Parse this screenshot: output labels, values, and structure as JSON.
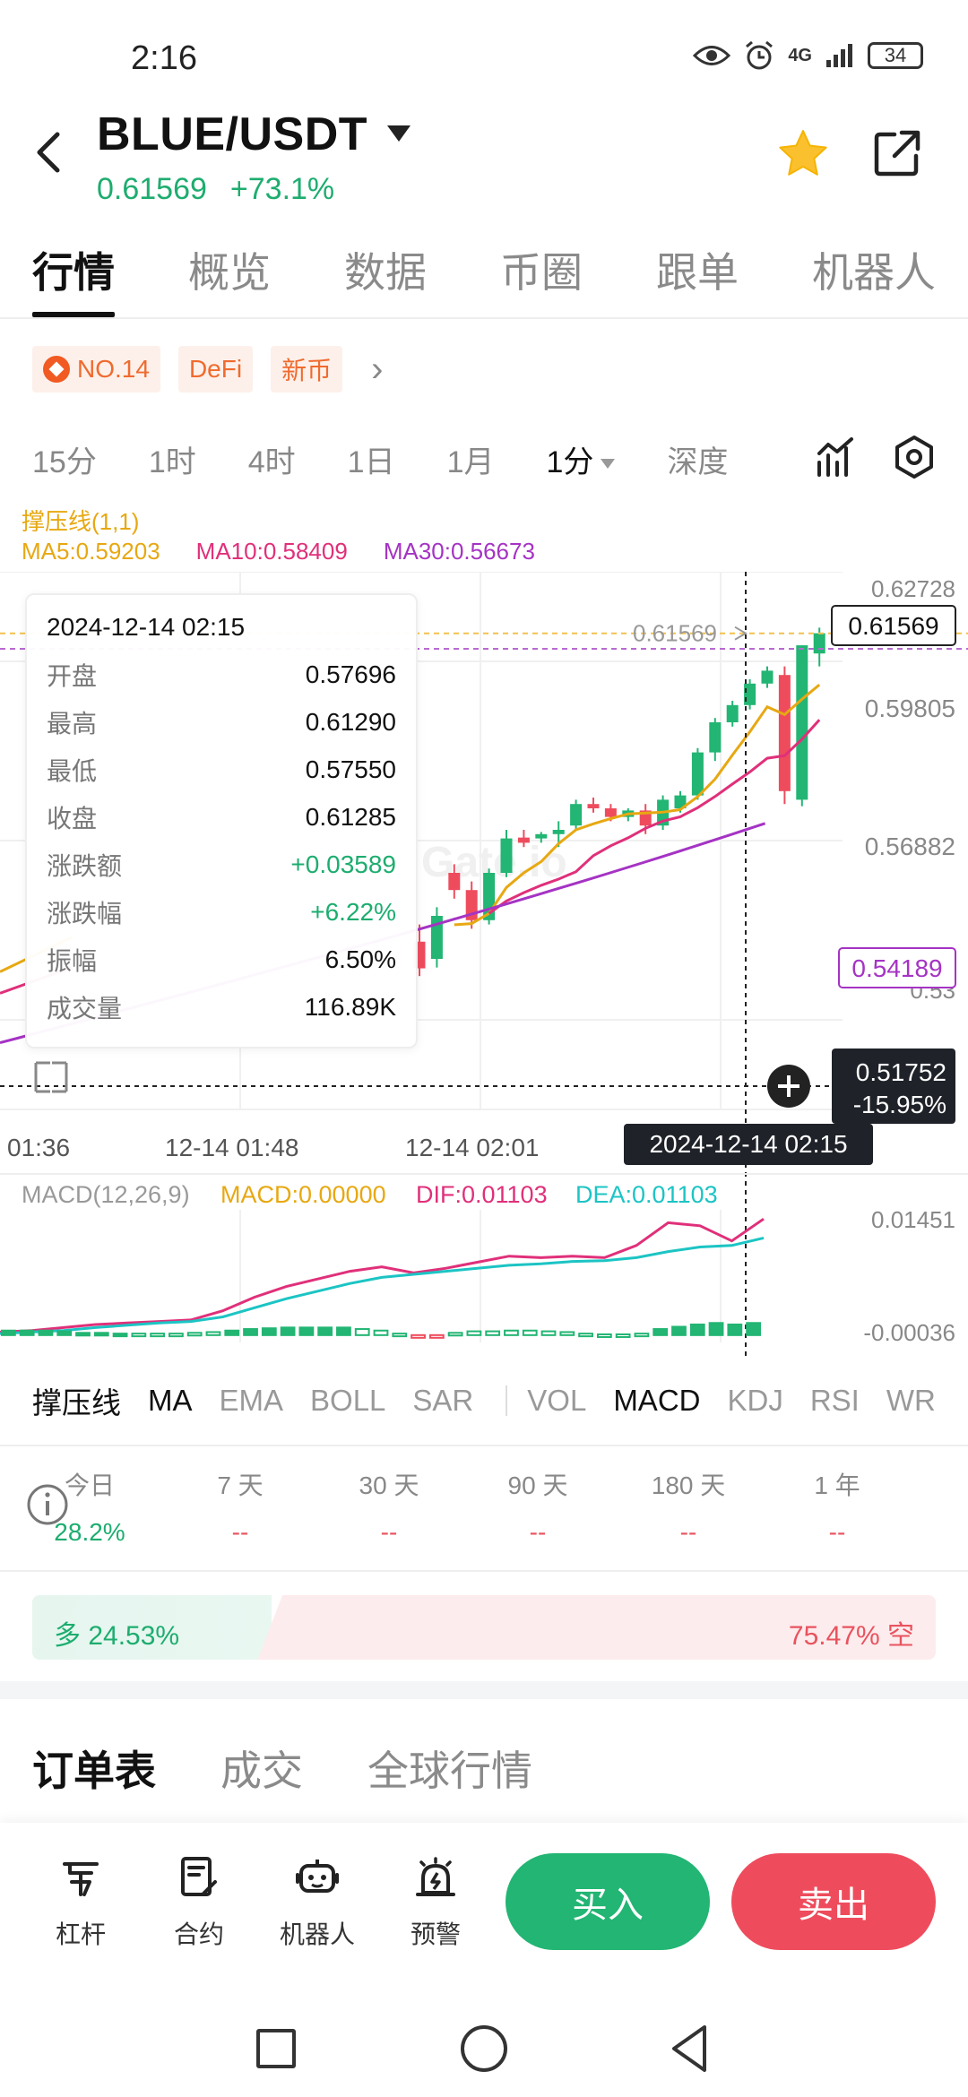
{
  "status_bar": {
    "time": "2:16",
    "network": "4G",
    "battery": "34"
  },
  "header": {
    "pair": "BLUE/USDT",
    "price": "0.61569",
    "change": "+73.1%"
  },
  "tabs": [
    {
      "label": "行情",
      "active": true
    },
    {
      "label": "概览",
      "active": false
    },
    {
      "label": "数据",
      "active": false
    },
    {
      "label": "币圈",
      "active": false
    },
    {
      "label": "跟单",
      "active": false
    },
    {
      "label": "机器人",
      "active": false
    }
  ],
  "tags": {
    "rank": "NO.14",
    "defi": "DeFi",
    "new": "新币"
  },
  "intervals": {
    "m15": "15分",
    "h1": "1时",
    "h4": "4时",
    "d1": "1日",
    "mo1": "1月",
    "selected": "1分",
    "depth": "深度"
  },
  "chart_legend": {
    "indicator": "撑压线(1,1)",
    "ma5": "MA5:0.59203",
    "ma10": "MA10:0.58409",
    "ma30": "MA30:0.56673",
    "ma5_color": "#e7a812",
    "ma10_color": "#e0307a",
    "ma30_color": "#a533c4"
  },
  "tooltip": {
    "date": "2024-12-14 02:15",
    "rows": [
      {
        "label": "开盘",
        "value": "0.57696"
      },
      {
        "label": "最高",
        "value": "0.61290"
      },
      {
        "label": "最低",
        "value": "0.57550"
      },
      {
        "label": "收盘",
        "value": "0.61285"
      },
      {
        "label": "涨跌额",
        "value": "+0.03589"
      },
      {
        "label": "涨跌幅",
        "value": "+6.22%"
      },
      {
        "label": "振幅",
        "value": "6.50%"
      },
      {
        "label": "成交量",
        "value": "116.89K"
      }
    ]
  },
  "chart_data": [
    {
      "type": "candlestick",
      "y_axis_labels": [
        "0.62728",
        "0.59805",
        "0.56882",
        "0.53"
      ],
      "y_range": [
        0.505,
        0.63
      ],
      "x_tick_labels": [
        "01:36",
        "12-14 01:48",
        "12-14 02:01"
      ],
      "last_price_label": "0.61569",
      "current_price_tag": "0.61569",
      "support_tag": "0.54189",
      "crosshair_price": "0.51752",
      "crosshair_change": "-15.95%",
      "crosshair_time": "2024-12-14 02:15",
      "watermark": "Gate.io",
      "candles": [
        {
          "o": 0.544,
          "h": 0.548,
          "l": 0.536,
          "c": 0.5378
        },
        {
          "o": 0.54,
          "h": 0.552,
          "l": 0.538,
          "c": 0.55
        },
        {
          "o": 0.56,
          "h": 0.562,
          "l": 0.554,
          "c": 0.556
        },
        {
          "o": 0.556,
          "h": 0.558,
          "l": 0.547,
          "c": 0.549
        },
        {
          "o": 0.549,
          "h": 0.561,
          "l": 0.548,
          "c": 0.56
        },
        {
          "o": 0.56,
          "h": 0.57,
          "l": 0.559,
          "c": 0.568
        },
        {
          "o": 0.5682,
          "h": 0.57,
          "l": 0.566,
          "c": 0.567
        },
        {
          "o": 0.568,
          "h": 0.5695,
          "l": 0.567,
          "c": 0.569
        },
        {
          "o": 0.569,
          "h": 0.572,
          "l": 0.566,
          "c": 0.57
        },
        {
          "o": 0.571,
          "h": 0.577,
          "l": 0.57,
          "c": 0.576
        },
        {
          "o": 0.576,
          "h": 0.5775,
          "l": 0.574,
          "c": 0.575
        },
        {
          "o": 0.575,
          "h": 0.576,
          "l": 0.572,
          "c": 0.573
        },
        {
          "o": 0.573,
          "h": 0.575,
          "l": 0.572,
          "c": 0.5745
        },
        {
          "o": 0.5745,
          "h": 0.576,
          "l": 0.569,
          "c": 0.571
        },
        {
          "o": 0.571,
          "h": 0.578,
          "l": 0.57,
          "c": 0.577
        },
        {
          "o": 0.575,
          "h": 0.579,
          "l": 0.574,
          "c": 0.578
        },
        {
          "o": 0.578,
          "h": 0.589,
          "l": 0.577,
          "c": 0.588
        },
        {
          "o": 0.588,
          "h": 0.596,
          "l": 0.586,
          "c": 0.595
        },
        {
          "o": 0.595,
          "h": 0.6,
          "l": 0.594,
          "c": 0.599
        },
        {
          "o": 0.599,
          "h": 0.605,
          "l": 0.598,
          "c": 0.604
        },
        {
          "o": 0.604,
          "h": 0.608,
          "l": 0.603,
          "c": 0.607
        },
        {
          "o": 0.606,
          "h": 0.608,
          "l": 0.576,
          "c": 0.579
        },
        {
          "o": 0.577,
          "h": 0.6129,
          "l": 0.5755,
          "c": 0.6129
        },
        {
          "o": 0.611,
          "h": 0.617,
          "l": 0.608,
          "c": 0.6157
        }
      ]
    },
    {
      "type": "macd",
      "label": "MACD(12,26,9)",
      "macd": "MACD:0.00000",
      "dif": "DIF:0.01103",
      "dea": "DEA:0.01103",
      "y_axis_labels": [
        "0.01451",
        "-0.00036"
      ],
      "y_range": [
        -0.0012,
        0.0165
      ],
      "dif_values": [
        0.0004,
        0.0006,
        0.001,
        0.0014,
        0.0016,
        0.0018,
        0.002,
        0.0032,
        0.005,
        0.0064,
        0.0074,
        0.0084,
        0.009,
        0.0082,
        0.0088,
        0.0096,
        0.0104,
        0.0102,
        0.0104,
        0.0102,
        0.0118,
        0.0148,
        0.0144,
        0.0124,
        0.0153
      ],
      "dea_values": [
        0.0002,
        0.0004,
        0.0006,
        0.001,
        0.0013,
        0.0016,
        0.0018,
        0.0024,
        0.0036,
        0.0048,
        0.0058,
        0.0068,
        0.0076,
        0.008,
        0.0084,
        0.0088,
        0.0092,
        0.0094,
        0.0097,
        0.0098,
        0.0102,
        0.011,
        0.0116,
        0.0118,
        0.0128
      ],
      "hist": [
        0.0006,
        0.0006,
        0.0006,
        0.0005,
        0.0003,
        0.0003,
        0.0002,
        0.0002,
        0.0002,
        0.0002,
        0.0003,
        0.0004,
        0.0006,
        0.0008,
        0.0009,
        0.001,
        0.001,
        0.001,
        0.001,
        0.0008,
        0.0006,
        0.0002,
        -0.0001,
        -0.0001,
        0.0003,
        0.0005,
        0.0005,
        0.0006,
        0.0006,
        0.0005,
        0.0004,
        0.0002,
        0.0001,
        0.0001,
        0.0002,
        0.0008,
        0.0011,
        0.0014,
        0.0016,
        0.0014,
        0.0016
      ]
    }
  ],
  "indicators": [
    "撑压线",
    "MA",
    "EMA",
    "BOLL",
    "SAR",
    "VOL",
    "MACD",
    "KDJ",
    "RSI",
    "WR"
  ],
  "period_stats": [
    {
      "label": "今日",
      "value": "28.2%"
    },
    {
      "label": "7 天",
      "value": "--"
    },
    {
      "label": "30 天",
      "value": "--"
    },
    {
      "label": "90 天",
      "value": "--"
    },
    {
      "label": "180 天",
      "value": "--"
    },
    {
      "label": "1 年",
      "value": "--"
    }
  ],
  "long_short": {
    "long_text": "多 24.53%",
    "short_text": "75.47% 空",
    "long_pct": 24.53
  },
  "bottom_tabs": [
    "订单表",
    "成交",
    "全球行情"
  ],
  "actions": {
    "margin": "杠杆",
    "contract": "合约",
    "bot": "机器人",
    "alert": "预警",
    "buy": "买入",
    "sell": "卖出"
  }
}
